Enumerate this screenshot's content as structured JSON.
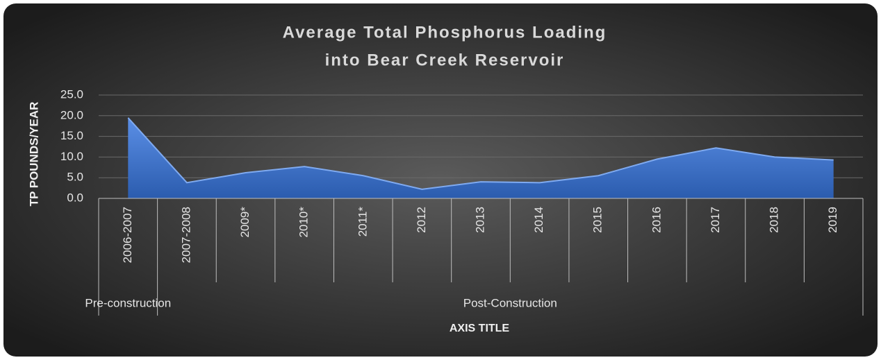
{
  "chart_data": {
    "type": "area",
    "title": [
      "Average Total Phosphorus Loading",
      "into Bear Creek Reservoir"
    ],
    "y_axis_title": "TP POUNDS/YEAR",
    "x_axis_title": "AXIS TITLE",
    "categories": [
      "2006-2007",
      "2007-2008",
      "2009*",
      "2010*",
      "2011*",
      "2012",
      "2013",
      "2014",
      "2015",
      "2016",
      "2017",
      "2018",
      "2019"
    ],
    "groups": [
      "Pre-construction",
      "Post-Construction"
    ],
    "values": [
      19.5,
      3.8,
      6.2,
      7.7,
      5.5,
      2.2,
      4.0,
      3.8,
      5.5,
      9.5,
      12.2,
      10.0,
      9.3
    ],
    "color": "#3f73c9",
    "ylim": [
      0,
      25
    ],
    "yticks": [
      {
        "value": 0,
        "label": "0.0"
      },
      {
        "value": 5,
        "label": "5.0"
      },
      {
        "value": 10,
        "label": "10.0"
      },
      {
        "value": 15,
        "label": "15.0"
      },
      {
        "value": 20,
        "label": "20.0"
      },
      {
        "value": 25,
        "label": "25.0"
      }
    ],
    "grid": true
  }
}
